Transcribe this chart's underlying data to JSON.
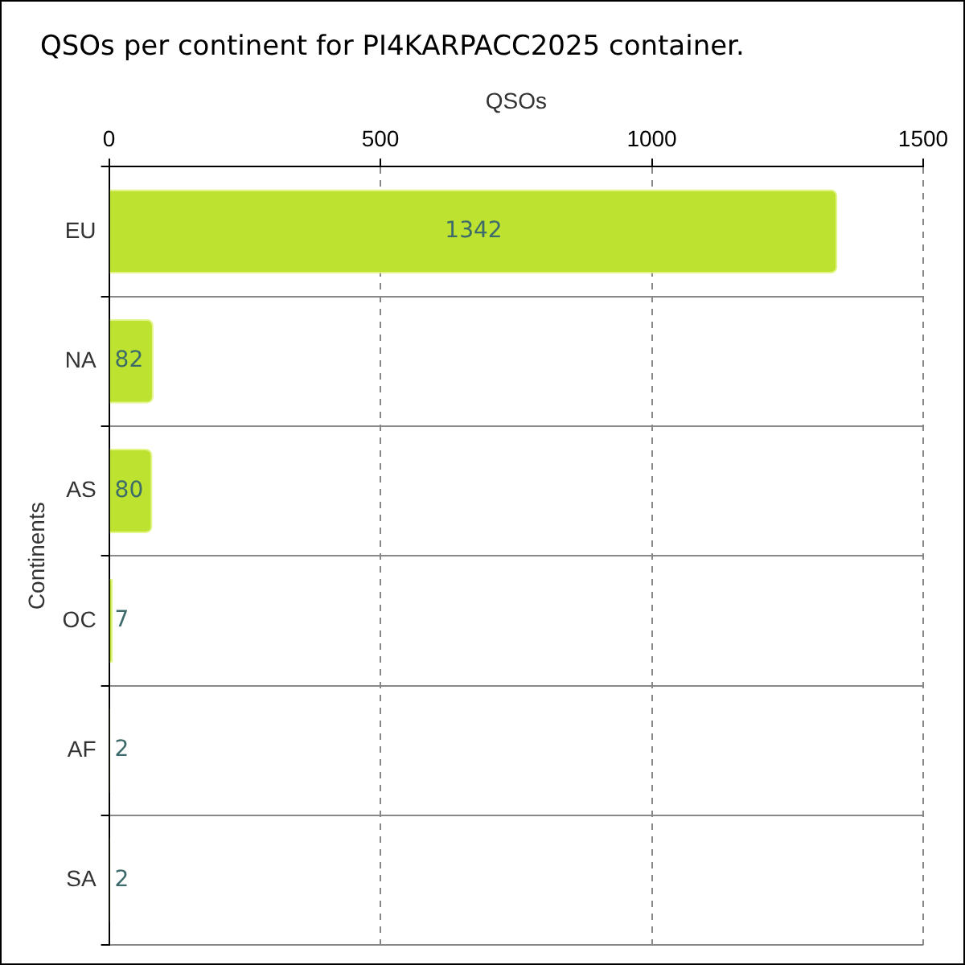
{
  "chart_data": {
    "type": "bar",
    "orientation": "horizontal",
    "title": "QSOs per continent for PI4KARPACC2025 container.",
    "xlabel": "QSOs",
    "ylabel": "Continents",
    "categories": [
      "EU",
      "NA",
      "AS",
      "OC",
      "AF",
      "SA"
    ],
    "values": [
      1342,
      82,
      80,
      7,
      2,
      2
    ],
    "color": "#bde330",
    "xlim": [
      0,
      1500
    ],
    "xticks": [
      0,
      500,
      1000,
      1500
    ],
    "grid": true,
    "data_labels": true
  }
}
